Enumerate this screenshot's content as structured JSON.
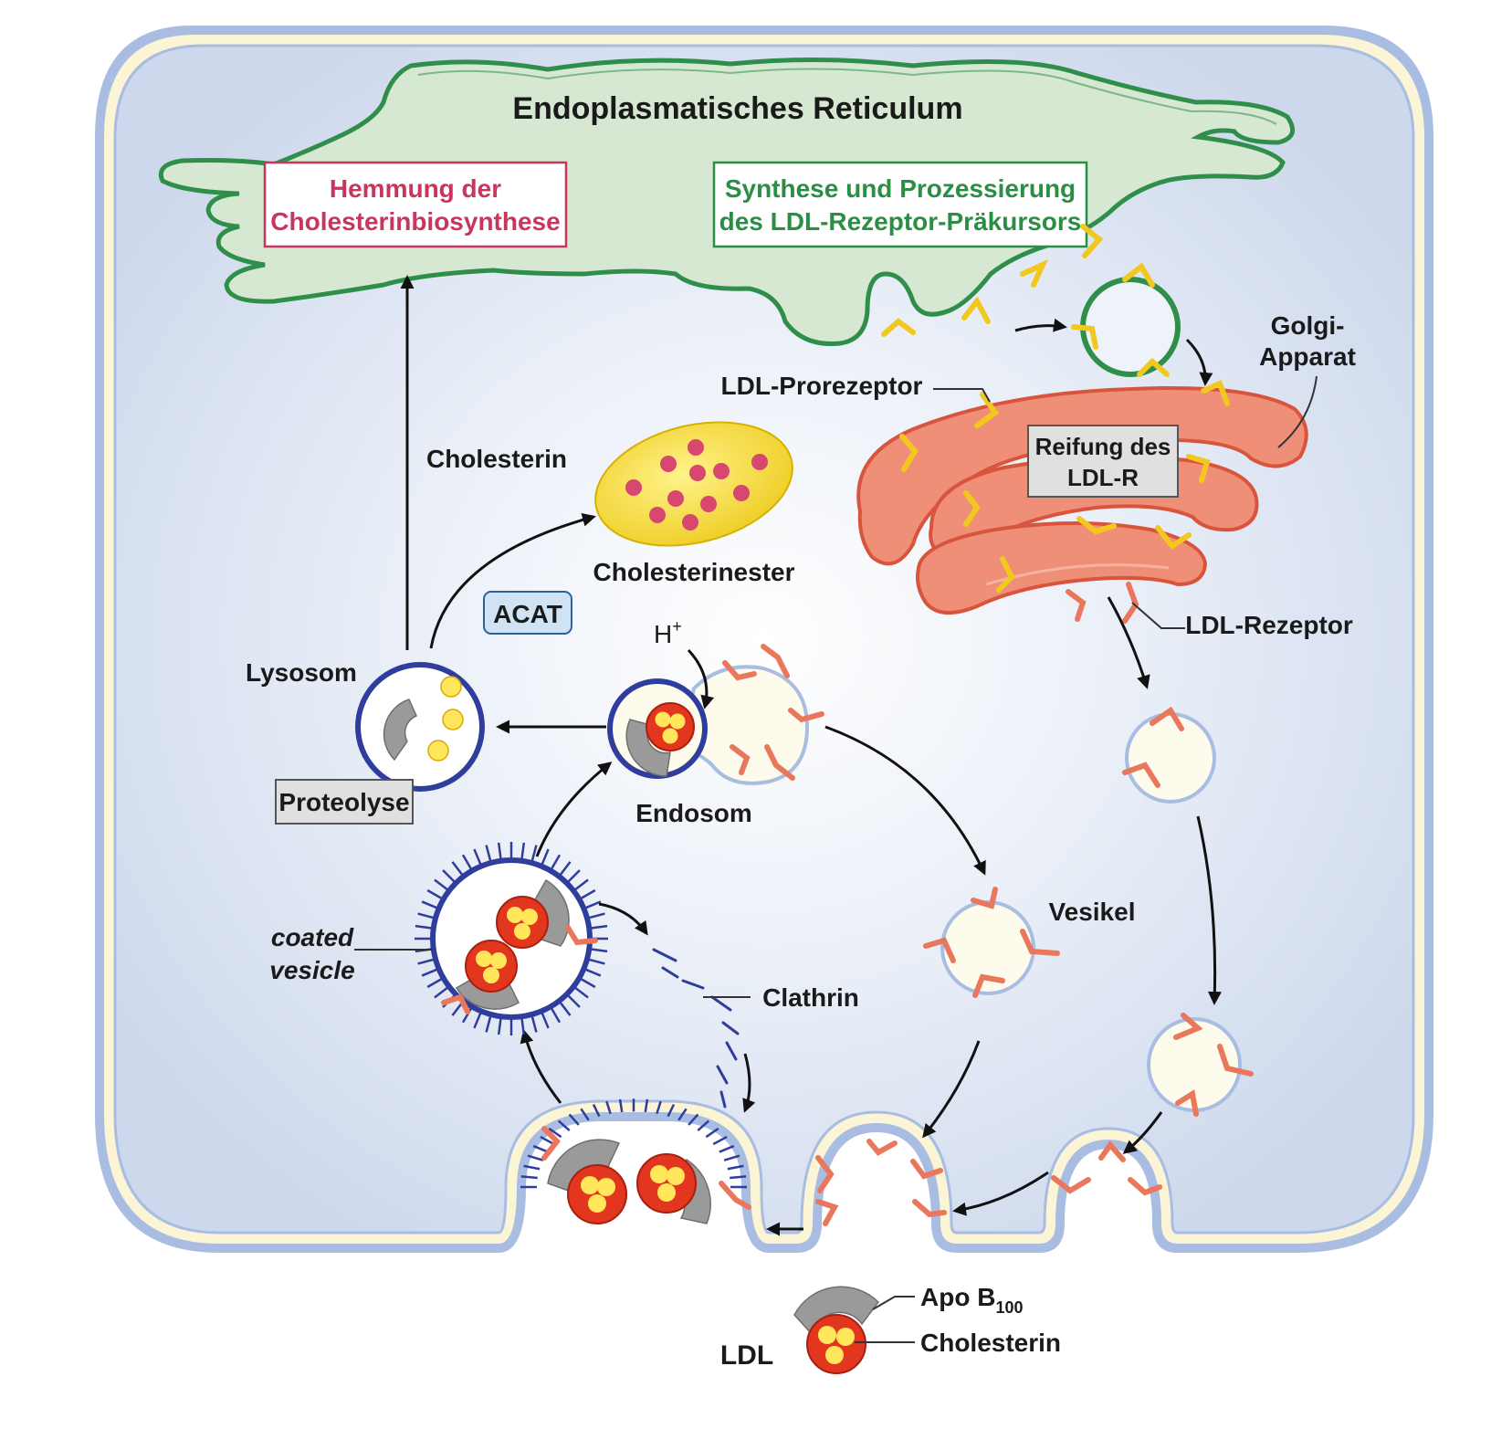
{
  "labels": {
    "er": "Endoplasmatisches Reticulum",
    "hemmung_1": "Hemmung der",
    "hemmung_2": "Cholesterinbiosynthese",
    "synthese_1": "Synthese und Prozessierung",
    "synthese_2": "des LDL-Rezeptor-Präkursors",
    "golgi_1": "Golgi-",
    "golgi_2": "Apparat",
    "prorezeptor": "LDL-Prorezeptor",
    "reifung_1": "Reifung des",
    "reifung_2": "LDL-R",
    "cholesterin": "Cholesterin",
    "cholesterinester": "Cholesterinester",
    "acat": "ACAT",
    "h_plus_base": "H",
    "h_plus_sup": "+",
    "ldl_rezeptor": "LDL-Rezeptor",
    "lysosom": "Lysosom",
    "proteolyse": "Proteolyse",
    "endosom": "Endosom",
    "vesikel": "Vesikel",
    "coated_1": "coated",
    "coated_2": "vesicle",
    "clathrin": "Clathrin",
    "legend_apo_base": "Apo B",
    "legend_apo_sub": "100",
    "legend_cholesterin": "Cholesterin",
    "legend_ldl": "LDL"
  },
  "colors": {
    "cytoplasm": "#d9e2f2",
    "membrane": "#9fb4dc",
    "membrane_inner": "#fbf6dc",
    "er_fill": "#d6e8d1",
    "er_stroke": "#2f8f4a",
    "golgi_fill": "#ef8f78",
    "golgi_stroke": "#d9543c",
    "receptor_yellow": "#f2c81e",
    "receptor_orange": "#e9775c",
    "ldl_red": "#e2361f",
    "ldl_core": "#ffe65a",
    "apo_grey": "#9a9a9a",
    "lysosome_blue": "#2f3e9c",
    "hemmung_text": "#c8365e",
    "synthese_text": "#2a8f45",
    "ester_fill": "#f2df3c",
    "ester_dot": "#d8476f"
  }
}
